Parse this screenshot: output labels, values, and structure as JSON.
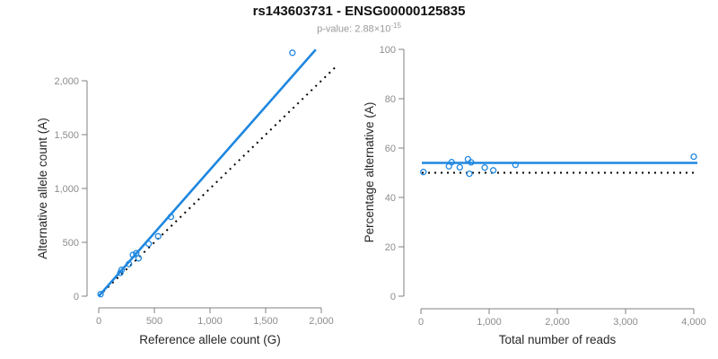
{
  "header": {
    "title": "rs143603731 - ENSG00000125835",
    "subtitle_prefix": "p-value: 2.88×10",
    "subtitle_exponent": "-15"
  },
  "colors": {
    "accent": "#1e87e0",
    "reference_line": "#000000",
    "axis": "#808080",
    "tick_label": "#8c8c8c",
    "axis_title": "#262626"
  },
  "chart_data": [
    {
      "type": "scatter",
      "xlabel": "Reference allele count (G)",
      "ylabel": "Alternative allele count (A)",
      "xlim": [
        0,
        2000
      ],
      "ylim": [
        0,
        2000
      ],
      "grid": false,
      "xticks": {
        "values": [
          0,
          500,
          1000,
          1500,
          2000
        ],
        "labels": [
          "0",
          "500",
          "1,000",
          "1,500",
          "2,000"
        ]
      },
      "yticks": {
        "values": [
          0,
          500,
          1000,
          1500,
          2000
        ],
        "labels": [
          "0",
          "500",
          "1,000",
          "1,500",
          "2,000"
        ]
      },
      "points": [
        [
          17,
          18
        ],
        [
          194,
          216
        ],
        [
          206,
          244
        ],
        [
          272,
          298
        ],
        [
          307,
          383
        ],
        [
          337,
          398
        ],
        [
          358,
          352
        ],
        [
          448,
          487
        ],
        [
          534,
          556
        ],
        [
          648,
          737
        ],
        [
          1740,
          2260
        ]
      ],
      "fit_line": {
        "slope": 1.174,
        "intercept": 0
      },
      "identity_line": {
        "slope": 1,
        "intercept": 0
      }
    },
    {
      "type": "scatter",
      "xlabel": "Total number of reads",
      "ylabel": "Percentage alternative (A)",
      "xlim": [
        0,
        4000
      ],
      "ylim": [
        0,
        100
      ],
      "grid": false,
      "xticks": {
        "values": [
          0,
          1000,
          2000,
          3000,
          4000
        ],
        "labels": [
          "0",
          "1,000",
          "2,000",
          "3,000",
          "4,000"
        ]
      },
      "yticks": {
        "values": [
          0,
          20,
          40,
          60,
          80,
          100
        ],
        "labels": [
          "0",
          "20",
          "40",
          "60",
          "80",
          "100"
        ]
      },
      "points": [
        [
          35,
          50.3
        ],
        [
          410,
          52.6
        ],
        [
          450,
          54.3
        ],
        [
          570,
          52.2
        ],
        [
          690,
          55.5
        ],
        [
          710,
          49.6
        ],
        [
          735,
          54.2
        ],
        [
          935,
          52.1
        ],
        [
          1060,
          51.0
        ],
        [
          1385,
          53.2
        ],
        [
          4000,
          56.5
        ]
      ],
      "fit_line": {
        "y": 54
      },
      "identity_line": {
        "y": 50
      }
    }
  ]
}
